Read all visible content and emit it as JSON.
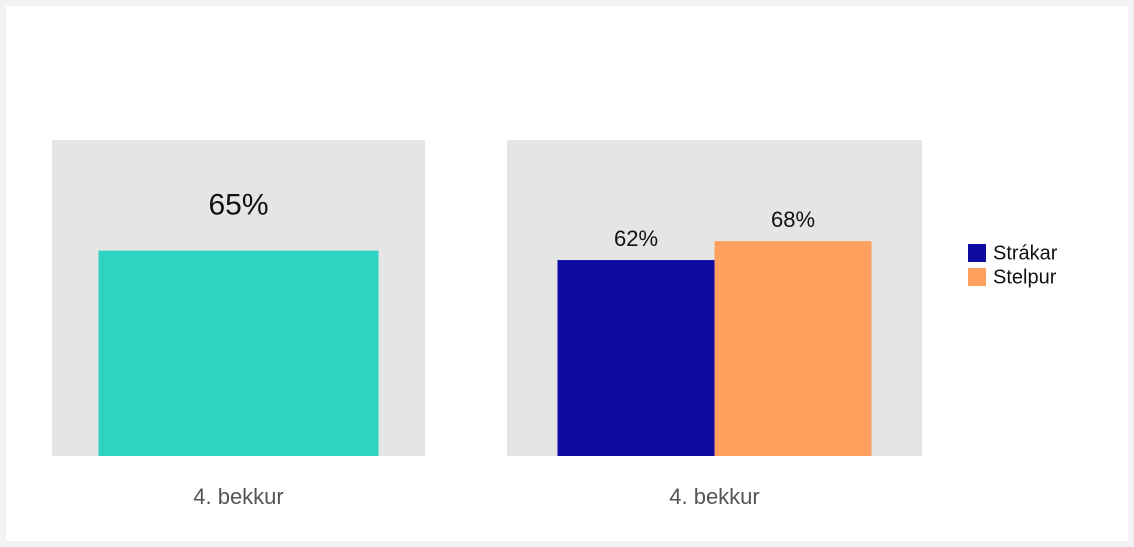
{
  "chart_data": [
    {
      "type": "bar",
      "categories": [
        "4. bekkur"
      ],
      "values": [
        65
      ],
      "value_labels": [
        "65%"
      ],
      "color": "#2ed3c1",
      "ylim": [
        0,
        100
      ]
    },
    {
      "type": "grouped_bar",
      "categories": [
        "4. bekkur"
      ],
      "series": [
        {
          "name": "Strákar",
          "color": "#0f0aa0",
          "values": [
            62
          ],
          "value_labels": [
            "62%"
          ]
        },
        {
          "name": "Stelpur",
          "color": "#ffa05f",
          "values": [
            68
          ],
          "value_labels": [
            "68%"
          ]
        }
      ],
      "ylim": [
        0,
        100
      ]
    }
  ]
}
